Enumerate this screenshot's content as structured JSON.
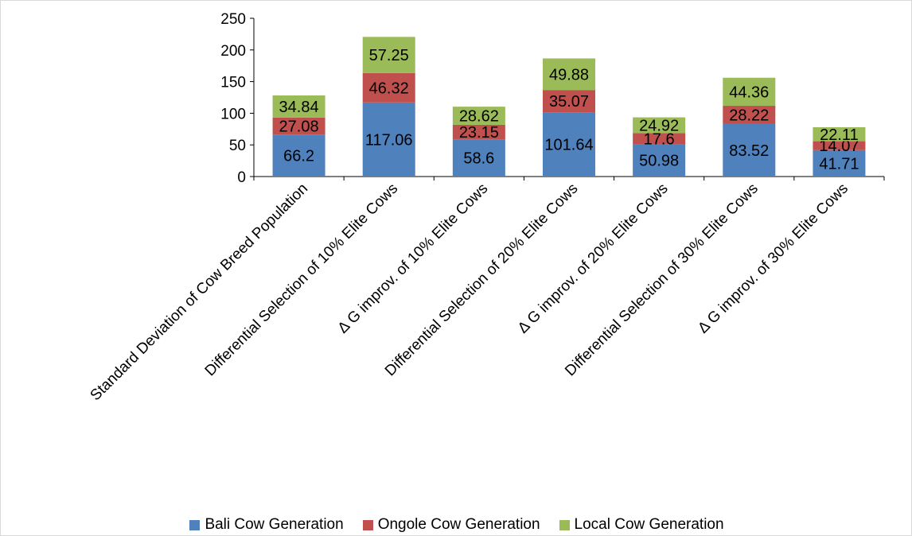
{
  "chart_data": {
    "type": "bar",
    "stacked": true,
    "categories": [
      "Standard Deviation of Cow Breed Population",
      "Differential Selection of 10% Elite Cows",
      "Δ G improv. of 10% Elite Cows",
      "Differential Selection of 20% Elite Cows",
      "Δ G improv. of 20% Elite Cows",
      "Differential Selection of 30% Elite Cows",
      "Δ G improv. of 30% Elite Cows"
    ],
    "series": [
      {
        "name": "Bali Cow Generation",
        "color": "#4f81bd",
        "values": [
          66.2,
          117.06,
          58.6,
          101.64,
          50.98,
          83.52,
          41.71
        ]
      },
      {
        "name": "Ongole Cow Generation",
        "color": "#c0504d",
        "values": [
          27.08,
          46.32,
          23.15,
          35.07,
          17.6,
          28.22,
          14.07
        ]
      },
      {
        "name": "Local Cow Generation",
        "color": "#9bbb59",
        "values": [
          34.84,
          57.25,
          28.62,
          49.88,
          24.92,
          44.36,
          22.11
        ]
      }
    ],
    "ylim": [
      0,
      250
    ],
    "yticks": [
      0,
      50,
      100,
      150,
      200,
      250
    ],
    "grid": false,
    "legend_position": "bottom"
  }
}
